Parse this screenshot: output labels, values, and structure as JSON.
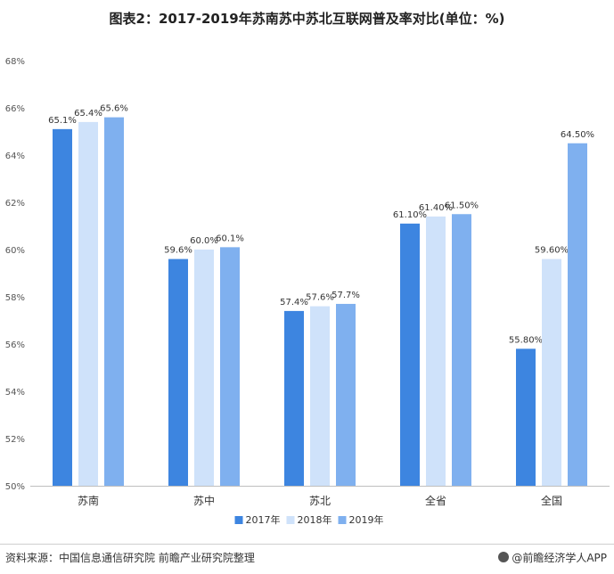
{
  "title": "图表2：2017-2019年苏南苏中苏北互联网普及率对比(单位：%)",
  "chart_data": {
    "type": "bar",
    "categories": [
      "苏南",
      "苏中",
      "苏北",
      "全省",
      "全国"
    ],
    "series": [
      {
        "name": "2017年",
        "color": "#3d85e0",
        "values": [
          65.1,
          59.6,
          57.4,
          61.1,
          55.8
        ],
        "labels": [
          "65.1%",
          "59.6%",
          "57.4%",
          "61.10%",
          "55.80%"
        ]
      },
      {
        "name": "2018年",
        "color": "#cfe2fa",
        "values": [
          65.4,
          60.0,
          57.6,
          61.4,
          59.6
        ],
        "labels": [
          "65.4%",
          "60.0%",
          "57.6%",
          "61.40%",
          "59.60%"
        ]
      },
      {
        "name": "2019年",
        "color": "#7fb0ef",
        "values": [
          65.6,
          60.1,
          57.7,
          61.5,
          64.5
        ],
        "labels": [
          "65.6%",
          "60.1%",
          "57.7%",
          "61.50%",
          "64.50%"
        ]
      }
    ],
    "ylim": [
      50,
      68
    ],
    "yticks": [
      "50%",
      "52%",
      "54%",
      "56%",
      "58%",
      "60%",
      "62%",
      "64%",
      "66%",
      "68%"
    ],
    "grid": false,
    "legend": "bottom"
  },
  "footer": {
    "source": "资料来源：中国信息通信研究院 前瞻产业研究院整理",
    "brand": "@前瞻经济学人APP"
  }
}
